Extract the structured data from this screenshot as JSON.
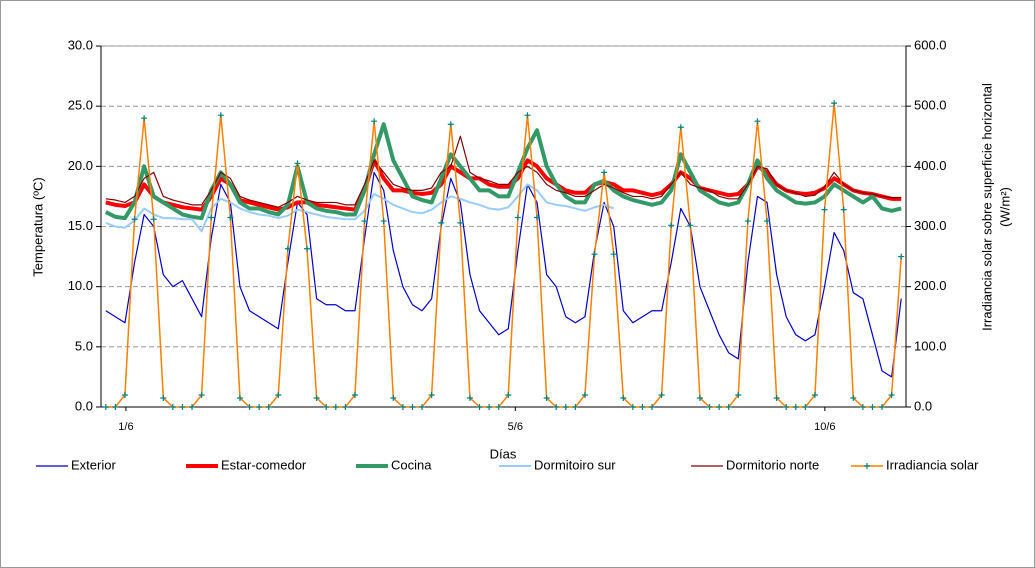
{
  "chart_data": {
    "type": "line",
    "x_label": "Días",
    "y_label": "Temperatura (ºC)",
    "y2_label": [
      "Irradiancia solar sobre superficie horizontal",
      "(W/m²)"
    ],
    "x": [
      1.5,
      4.5,
      7.5,
      10.5,
      13.5,
      16.5,
      19.5,
      22.5,
      25.5,
      28.5,
      31.5,
      34.5,
      37.5,
      40.5,
      43.5,
      46.5,
      49.5,
      52.5,
      55.5,
      58.5,
      61.5,
      64.5,
      67.5,
      70.5,
      73.5,
      76.5,
      79.5,
      82.5,
      85.5,
      88.5,
      91.5,
      94.5,
      97.5,
      100.5,
      103.5,
      106.5,
      109.5,
      112.5,
      115.5,
      118.5,
      121.5,
      124.5,
      127.5,
      130.5,
      133.5,
      136.5,
      139.5,
      142.5,
      145.5,
      148.5,
      151.5,
      154.5,
      157.5,
      160.5,
      163.5,
      166.5,
      169.5,
      172.5,
      175.5,
      178.5,
      181.5,
      184.5,
      187.5,
      190.5,
      193.5,
      196.5,
      199.5,
      202.5,
      205.5,
      208.5,
      211.5,
      214.5,
      217.5,
      220.5,
      223.5,
      226.5,
      229.5,
      232.5,
      235.5,
      238.5,
      241.5,
      244.5,
      247.5,
      250.5
    ],
    "xlim": [
      0,
      252
    ],
    "xticks": [
      {
        "value": 7.8,
        "label": "1/6"
      },
      {
        "value": 129.7,
        "label": "5/6"
      },
      {
        "value": 226.6,
        "label": "10/6"
      }
    ],
    "ylim": [
      0,
      30
    ],
    "yticks": [
      {
        "value": 0,
        "label": "0.0"
      },
      {
        "value": 5,
        "label": "5.0"
      },
      {
        "value": 10,
        "label": "10.0"
      },
      {
        "value": 15,
        "label": "15.0"
      },
      {
        "value": 20,
        "label": "20.0"
      },
      {
        "value": 25,
        "label": "25.0"
      },
      {
        "value": 30,
        "label": "30.0"
      }
    ],
    "y2lim": [
      0,
      600
    ],
    "y2ticks": [
      {
        "value": 0,
        "label": "0.0"
      },
      {
        "value": 100,
        "label": "100.0"
      },
      {
        "value": 200,
        "label": "200.0"
      },
      {
        "value": 300,
        "label": "300.0"
      },
      {
        "value": 400,
        "label": "400.0"
      },
      {
        "value": 500,
        "label": "500.0"
      },
      {
        "value": 600,
        "label": "600.0"
      }
    ],
    "grid": true,
    "legend": "bottom",
    "series": [
      {
        "name": "Exterior",
        "color": "#0000cc",
        "width": 1.2,
        "values": [
          8,
          7.5,
          7,
          12,
          16,
          15,
          11,
          10,
          10.5,
          9,
          7.5,
          14,
          18.5,
          17,
          10,
          8,
          7.5,
          7,
          6.5,
          12,
          17,
          16,
          9,
          8.5,
          8.5,
          8,
          8,
          14,
          19.5,
          18,
          13,
          10,
          8.5,
          8,
          9,
          15,
          19,
          17,
          11,
          8,
          7,
          6,
          6.5,
          13,
          18.5,
          17,
          11,
          10,
          7.5,
          7,
          7.5,
          13,
          17,
          15,
          8,
          7,
          7.5,
          8,
          8,
          12,
          16.5,
          15,
          10,
          8,
          6,
          4.5,
          4,
          12,
          17.5,
          17,
          11,
          7.5,
          6,
          5.5,
          6,
          10,
          14.5,
          13,
          9.5,
          9,
          6,
          3,
          2.5,
          9
        ]
      },
      {
        "name": "Estar-comedor",
        "color": "#ff0000",
        "width": 4,
        "values": [
          17,
          16.8,
          16.7,
          17,
          18.5,
          17.5,
          17,
          16.8,
          16.6,
          16.5,
          16.4,
          17.5,
          19,
          18.5,
          17.2,
          17,
          16.8,
          16.6,
          16.4,
          16.6,
          17,
          17,
          16.8,
          16.7,
          16.6,
          16.5,
          16.4,
          18,
          20.5,
          19,
          18,
          18,
          17.8,
          17.7,
          17.8,
          18.5,
          20,
          19.5,
          19,
          19,
          18.5,
          18.3,
          18.3,
          19,
          20.5,
          20,
          19,
          18.5,
          18,
          17.8,
          17.8,
          18.5,
          18.7,
          18.5,
          18,
          18,
          17.8,
          17.6,
          17.8,
          18.5,
          19.5,
          19,
          18.2,
          18,
          17.8,
          17.6,
          17.7,
          18.5,
          20,
          19.5,
          18.5,
          18,
          17.8,
          17.7,
          17.8,
          18.2,
          19,
          18.5,
          18,
          17.8,
          17.7,
          17.5,
          17.3,
          17.3
        ]
      },
      {
        "name": "Cocina",
        "color": "#339966",
        "width": 4,
        "values": [
          16.2,
          15.8,
          15.7,
          17,
          20,
          17.5,
          17,
          16.5,
          16,
          15.8,
          15.7,
          18,
          19.5,
          18.5,
          17,
          16.5,
          16.5,
          16.2,
          16,
          16.8,
          20,
          17,
          16.5,
          16.3,
          16.2,
          16,
          16,
          18,
          21,
          23.5,
          20.5,
          19,
          17.5,
          17.2,
          17,
          19,
          21,
          20,
          19,
          18,
          18,
          17.5,
          17.5,
          19.5,
          21.5,
          23,
          20,
          18.5,
          17.5,
          17,
          17,
          18.5,
          18.8,
          18,
          17.5,
          17.2,
          17,
          16.8,
          17,
          18,
          21,
          19.5,
          18,
          17.5,
          17,
          16.8,
          17,
          18.5,
          20.5,
          19,
          18,
          17.5,
          17,
          16.9,
          17,
          17.5,
          18.5,
          18,
          17.5,
          17,
          17.5,
          16.5,
          16.3,
          16.5
        ]
      },
      {
        "name": "Dormitoiro sur",
        "color": "#99ccff",
        "width": 2,
        "values": [
          15.3,
          15,
          14.9,
          15.5,
          16.5,
          16,
          15.7,
          15.7,
          15.6,
          15.6,
          14.6,
          16.5,
          17.3,
          17,
          16.5,
          16.2,
          16,
          15.9,
          15.7,
          15.9,
          16.4,
          16.2,
          16,
          15.8,
          15.7,
          15.6,
          15.6,
          16.3,
          17.7,
          17.3,
          16.8,
          16.5,
          16.2,
          16.1,
          16.4,
          17,
          17.5,
          17.3,
          17,
          16.8,
          16.5,
          16.4,
          16.6,
          17.5,
          18.5,
          18,
          17,
          16.8,
          16.7,
          16.5,
          16.3,
          16.6,
          16.8,
          16.5,
          null,
          null,
          null,
          null,
          null,
          null,
          null,
          null,
          null,
          null,
          null,
          null,
          null,
          null,
          null,
          null,
          null,
          null,
          null,
          null,
          null,
          null,
          null,
          null,
          null,
          null,
          null,
          null,
          null,
          null
        ]
      },
      {
        "name": "Dormitorio norte",
        "color": "#800000",
        "width": 1.2,
        "values": [
          17.3,
          17.2,
          17,
          17.5,
          19,
          19.5,
          17.5,
          17.2,
          17,
          16.8,
          16.8,
          18,
          19.5,
          19,
          17.5,
          17.2,
          17,
          16.8,
          16.6,
          17,
          17.5,
          17.2,
          17,
          17,
          17,
          16.8,
          16.8,
          18.5,
          20.5,
          19.5,
          18.5,
          18.2,
          18,
          18,
          18.2,
          19.5,
          20,
          22.5,
          19.5,
          19,
          18.8,
          18.5,
          18.5,
          19.5,
          20,
          19.5,
          18.5,
          18,
          17.8,
          17.5,
          17.5,
          18,
          18.5,
          18.2,
          17.8,
          17.5,
          17.5,
          17.3,
          17.5,
          18.5,
          19.5,
          18.5,
          18.2,
          18,
          17.5,
          17.3,
          17.3,
          18.5,
          20,
          19.8,
          18.5,
          18,
          17.8,
          17.5,
          17.6,
          18.3,
          19.5,
          18.5,
          18,
          17.8,
          17.7,
          17.5,
          17.4,
          17.4
        ]
      },
      {
        "name": "Irradiancia solar",
        "color": "#ff8000",
        "marker_color": "#008080",
        "width": 1.5,
        "axis": "y2",
        "values": [
          0,
          0,
          20,
          312,
          480,
          312,
          15,
          0,
          0,
          0,
          20,
          315,
          485,
          315,
          15,
          0,
          0,
          0,
          20,
          263,
          405,
          263,
          15,
          0,
          0,
          0,
          20,
          309,
          475,
          309,
          15,
          0,
          0,
          0,
          20,
          306,
          470,
          306,
          15,
          0,
          0,
          0,
          20,
          315,
          485,
          315,
          15,
          0,
          0,
          0,
          20,
          254,
          390,
          254,
          15,
          0,
          0,
          0,
          20,
          302,
          465,
          302,
          15,
          0,
          0,
          0,
          20,
          309,
          475,
          309,
          15,
          0,
          0,
          0,
          20,
          328,
          505,
          328,
          15,
          0,
          0,
          0,
          20,
          250
        ]
      }
    ]
  }
}
